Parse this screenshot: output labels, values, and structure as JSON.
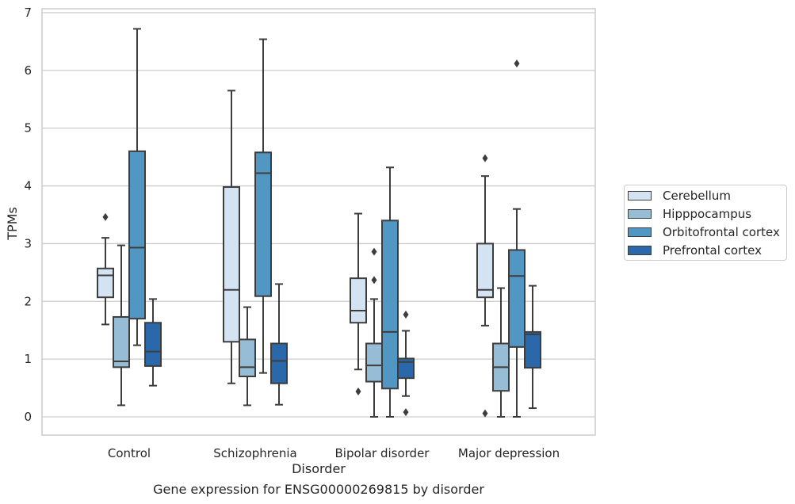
{
  "chart_data": {
    "type": "box",
    "title": "",
    "caption": "Gene expression for ENSG00000269815 by disorder",
    "xlabel": "Disorder",
    "ylabel": "TPMs",
    "ylim": [
      -0.32,
      7.1
    ],
    "yticks": [
      0,
      1,
      2,
      3,
      4,
      5,
      6,
      7
    ],
    "grid": "horizontal",
    "legend_position": "right",
    "categories": [
      "Control",
      "Schizophrenia",
      "Bipolar disorder",
      "Major depression"
    ],
    "series": [
      {
        "name": "Cerebellum",
        "color": "#d4e3f1",
        "boxes": [
          {
            "min": 1.6,
            "q1": 2.07,
            "median": 2.45,
            "q3": 2.57,
            "max": 3.1,
            "outliers": [
              3.46
            ]
          },
          {
            "min": 0.58,
            "q1": 1.3,
            "median": 2.2,
            "q3": 3.98,
            "max": 5.65,
            "outliers": []
          },
          {
            "min": 0.82,
            "q1": 1.63,
            "median": 1.84,
            "q3": 2.4,
            "max": 3.52,
            "outliers": [
              0.44
            ]
          },
          {
            "min": 1.58,
            "q1": 2.07,
            "median": 2.2,
            "q3": 3.0,
            "max": 4.17,
            "outliers": [
              4.48,
              0.06
            ]
          }
        ]
      },
      {
        "name": "Hipppocampus",
        "color": "#97bcd6",
        "boxes": [
          {
            "min": 0.2,
            "q1": 0.86,
            "median": 0.96,
            "q3": 1.73,
            "max": 2.97,
            "outliers": []
          },
          {
            "min": 0.2,
            "q1": 0.7,
            "median": 0.86,
            "q3": 1.34,
            "max": 1.9,
            "outliers": []
          },
          {
            "min": 0.0,
            "q1": 0.61,
            "median": 0.89,
            "q3": 1.27,
            "max": 2.04,
            "outliers": [
              2.37,
              2.86
            ]
          },
          {
            "min": 0.0,
            "q1": 0.45,
            "median": 0.86,
            "q3": 1.27,
            "max": 2.23,
            "outliers": []
          }
        ]
      },
      {
        "name": "Orbitofrontal cortex",
        "color": "#5296c3",
        "boxes": [
          {
            "min": 1.24,
            "q1": 1.7,
            "median": 2.93,
            "q3": 4.6,
            "max": 6.72,
            "outliers": []
          },
          {
            "min": 0.76,
            "q1": 2.09,
            "median": 4.22,
            "q3": 4.58,
            "max": 6.54,
            "outliers": []
          },
          {
            "min": 0.0,
            "q1": 0.49,
            "median": 1.47,
            "q3": 3.4,
            "max": 4.32,
            "outliers": []
          },
          {
            "min": 0.0,
            "q1": 1.21,
            "median": 2.44,
            "q3": 2.89,
            "max": 3.6,
            "outliers": [
              6.12
            ]
          }
        ]
      },
      {
        "name": "Prefrontal cortex",
        "color": "#2a68aa",
        "boxes": [
          {
            "min": 0.54,
            "q1": 0.88,
            "median": 1.13,
            "q3": 1.63,
            "max": 2.04,
            "outliers": []
          },
          {
            "min": 0.21,
            "q1": 0.58,
            "median": 0.97,
            "q3": 1.27,
            "max": 2.3,
            "outliers": []
          },
          {
            "min": 0.36,
            "q1": 0.67,
            "median": 0.95,
            "q3": 1.01,
            "max": 1.49,
            "outliers": [
              1.77,
              0.08
            ]
          },
          {
            "min": 0.15,
            "q1": 0.85,
            "median": 1.43,
            "q3": 1.47,
            "max": 2.27,
            "outliers": []
          }
        ]
      }
    ]
  }
}
